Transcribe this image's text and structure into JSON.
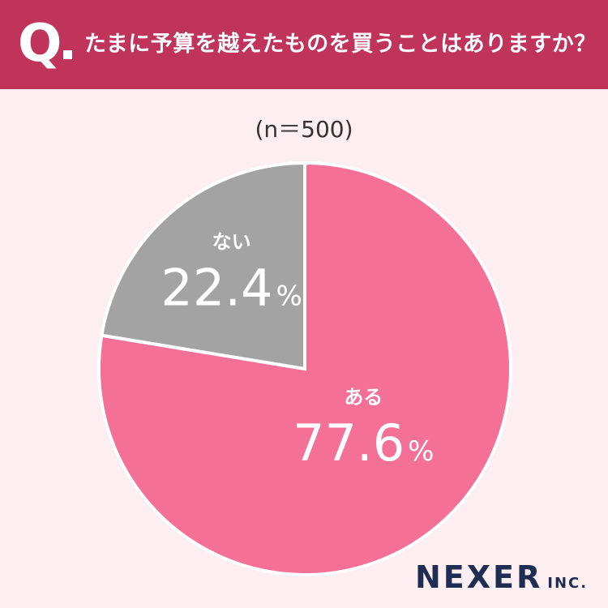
{
  "header": {
    "q_mark": "Q",
    "question": "たまに予算を越えたものを買うことはありますか？"
  },
  "sample_label": "(n＝500)",
  "chart_data": {
    "type": "pie",
    "title": "たまに予算を越えたものを買うことはありますか？",
    "sample_size": "(n＝500)",
    "slices": [
      {
        "label": "ある",
        "value": 77.6,
        "display": "77.6",
        "unit": "%",
        "color": "#f57096"
      },
      {
        "label": "ない",
        "value": 22.4,
        "display": "22.4",
        "unit": "%",
        "color": "#a3a3a3"
      }
    ],
    "start": "12 o'clock",
    "direction": "clockwise",
    "separator_color": "#ffffff"
  },
  "logo": {
    "main": "NEXER",
    "sub": "INC."
  }
}
